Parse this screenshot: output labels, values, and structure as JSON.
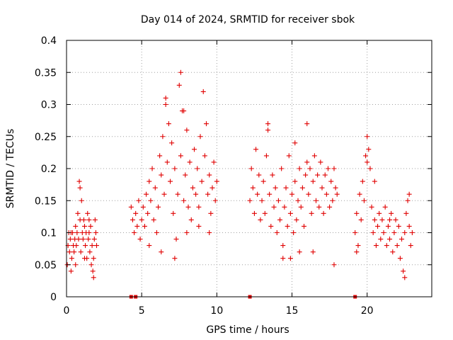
{
  "chart_data": {
    "type": "scatter",
    "title": "Day 014 of 2024, SRMTID for receiver sbok",
    "xlabel": "GPS time / hours",
    "ylabel": "SRMTID / TECUs",
    "xlim": [
      0,
      24.3
    ],
    "ylim": [
      0,
      0.4
    ],
    "x_ticks": [
      0,
      5,
      10,
      15,
      20
    ],
    "x_tick_labels": [
      "0",
      "5",
      "10",
      "15",
      "20"
    ],
    "y_ticks": [
      0,
      0.05,
      0.1,
      0.15,
      0.2,
      0.25,
      0.3,
      0.35,
      0.4
    ],
    "y_tick_labels": [
      "0",
      "0.05",
      "0.1",
      "0.15",
      "0.2",
      "0.25",
      "0.3",
      "0.35",
      "0.4"
    ],
    "grid": true,
    "marker": "+",
    "color": "#e00000",
    "series": [
      {
        "name": "SRMTID",
        "points": [
          [
            0.05,
            0.05
          ],
          [
            0.1,
            0.08
          ],
          [
            0.15,
            0.1
          ],
          [
            0.2,
            0.07
          ],
          [
            0.25,
            0.09
          ],
          [
            0.3,
            0.04
          ],
          [
            0.35,
            0.06
          ],
          [
            0.4,
            0.1
          ],
          [
            0.45,
            0.08
          ],
          [
            0.5,
            0.07
          ],
          [
            0.55,
            0.09
          ],
          [
            0.6,
            0.11
          ],
          [
            0.65,
            0.08
          ],
          [
            0.7,
            0.1
          ],
          [
            0.75,
            0.13
          ],
          [
            0.8,
            0.09
          ],
          [
            0.85,
            0.18
          ],
          [
            0.9,
            0.12
          ],
          [
            0.95,
            0.07
          ],
          [
            1.0,
            0.15
          ],
          [
            1.05,
            0.1
          ],
          [
            1.1,
            0.09
          ],
          [
            1.15,
            0.12
          ],
          [
            1.2,
            0.11
          ],
          [
            1.25,
            0.08
          ],
          [
            1.3,
            0.1
          ],
          [
            1.35,
            0.06
          ],
          [
            1.4,
            0.13
          ],
          [
            1.45,
            0.09
          ],
          [
            1.5,
            0.1
          ],
          [
            1.55,
            0.07
          ],
          [
            1.6,
            0.11
          ],
          [
            1.65,
            0.05
          ],
          [
            1.7,
            0.08
          ],
          [
            1.75,
            0.04
          ],
          [
            1.8,
            0.06
          ],
          [
            1.85,
            0.09
          ],
          [
            1.9,
            0.12
          ],
          [
            1.95,
            0.1
          ],
          [
            2.0,
            0.08
          ],
          [
            0.3,
            0.1
          ],
          [
            0.6,
            0.05
          ],
          [
            0.9,
            0.17
          ],
          [
            1.2,
            0.06
          ],
          [
            1.5,
            0.12
          ],
          [
            1.8,
            0.03
          ],
          [
            4.3,
            0.14
          ],
          [
            4.4,
            0.12
          ],
          [
            4.5,
            0.1
          ],
          [
            4.6,
            0.13
          ],
          [
            4.7,
            0.11
          ],
          [
            4.8,
            0.15
          ],
          [
            4.9,
            0.09
          ],
          [
            5.0,
            0.12
          ],
          [
            5.1,
            0.14
          ],
          [
            5.2,
            0.11
          ],
          [
            5.3,
            0.16
          ],
          [
            5.4,
            0.13
          ],
          [
            5.5,
            0.18
          ],
          [
            5.6,
            0.15
          ],
          [
            5.7,
            0.2
          ],
          [
            5.8,
            0.12
          ],
          [
            5.9,
            0.17
          ],
          [
            6.0,
            0.1
          ],
          [
            6.1,
            0.14
          ],
          [
            6.2,
            0.22
          ],
          [
            6.3,
            0.19
          ],
          [
            6.4,
            0.25
          ],
          [
            6.5,
            0.16
          ],
          [
            6.6,
            0.3
          ],
          [
            6.7,
            0.21
          ],
          [
            6.8,
            0.27
          ],
          [
            6.9,
            0.18
          ],
          [
            7.0,
            0.24
          ],
          [
            7.1,
            0.13
          ],
          [
            7.2,
            0.2
          ],
          [
            7.3,
            0.09
          ],
          [
            7.4,
            0.16
          ],
          [
            7.5,
            0.33
          ],
          [
            7.6,
            0.22
          ],
          [
            7.7,
            0.29
          ],
          [
            7.8,
            0.15
          ],
          [
            7.9,
            0.19
          ],
          [
            8.0,
            0.26
          ],
          [
            8.1,
            0.14
          ],
          [
            8.2,
            0.21
          ],
          [
            8.3,
            0.12
          ],
          [
            8.4,
            0.17
          ],
          [
            8.5,
            0.23
          ],
          [
            8.6,
            0.16
          ],
          [
            8.7,
            0.2
          ],
          [
            8.8,
            0.14
          ],
          [
            8.9,
            0.25
          ],
          [
            9.0,
            0.18
          ],
          [
            9.1,
            0.32
          ],
          [
            9.2,
            0.22
          ],
          [
            9.3,
            0.27
          ],
          [
            9.4,
            0.16
          ],
          [
            9.5,
            0.19
          ],
          [
            9.6,
            0.13
          ],
          [
            9.7,
            0.17
          ],
          [
            9.8,
            0.21
          ],
          [
            9.9,
            0.15
          ],
          [
            10.0,
            0.18
          ],
          [
            5.5,
            0.08
          ],
          [
            6.3,
            0.07
          ],
          [
            7.2,
            0.06
          ],
          [
            7.6,
            0.35
          ],
          [
            8.0,
            0.1
          ],
          [
            8.8,
            0.11
          ],
          [
            9.5,
            0.1
          ],
          [
            6.6,
            0.31
          ],
          [
            7.8,
            0.29
          ],
          [
            12.2,
            0.15
          ],
          [
            12.3,
            0.2
          ],
          [
            12.4,
            0.17
          ],
          [
            12.5,
            0.13
          ],
          [
            12.6,
            0.23
          ],
          [
            12.7,
            0.16
          ],
          [
            12.8,
            0.19
          ],
          [
            12.9,
            0.12
          ],
          [
            13.0,
            0.15
          ],
          [
            13.1,
            0.18
          ],
          [
            13.2,
            0.13
          ],
          [
            13.3,
            0.22
          ],
          [
            13.4,
            0.27
          ],
          [
            13.5,
            0.16
          ],
          [
            13.6,
            0.11
          ],
          [
            13.7,
            0.19
          ],
          [
            13.8,
            0.14
          ],
          [
            13.9,
            0.17
          ],
          [
            14.0,
            0.1
          ],
          [
            14.1,
            0.15
          ],
          [
            14.2,
            0.12
          ],
          [
            14.3,
            0.2
          ],
          [
            14.4,
            0.08
          ],
          [
            14.5,
            0.14
          ],
          [
            14.6,
            0.17
          ],
          [
            14.7,
            0.11
          ],
          [
            14.8,
            0.22
          ],
          [
            14.9,
            0.13
          ],
          [
            15.0,
            0.16
          ],
          [
            15.1,
            0.1
          ],
          [
            15.2,
            0.18
          ],
          [
            15.3,
            0.12
          ],
          [
            15.4,
            0.15
          ],
          [
            15.5,
            0.2
          ],
          [
            15.6,
            0.14
          ],
          [
            15.7,
            0.17
          ],
          [
            15.8,
            0.11
          ],
          [
            15.9,
            0.19
          ],
          [
            16.0,
            0.21
          ],
          [
            16.1,
            0.16
          ],
          [
            16.2,
            0.2
          ],
          [
            16.3,
            0.13
          ],
          [
            16.4,
            0.18
          ],
          [
            16.5,
            0.22
          ],
          [
            16.6,
            0.15
          ],
          [
            16.7,
            0.19
          ],
          [
            16.8,
            0.14
          ],
          [
            16.9,
            0.21
          ],
          [
            17.0,
            0.17
          ],
          [
            17.1,
            0.13
          ],
          [
            17.2,
            0.19
          ],
          [
            17.3,
            0.16
          ],
          [
            17.4,
            0.2
          ],
          [
            17.5,
            0.14
          ],
          [
            17.6,
            0.18
          ],
          [
            17.7,
            0.15
          ],
          [
            17.8,
            0.2
          ],
          [
            17.9,
            0.17
          ],
          [
            18.0,
            0.16
          ],
          [
            13.4,
            0.26
          ],
          [
            14.4,
            0.06
          ],
          [
            15.2,
            0.24
          ],
          [
            15.5,
            0.07
          ],
          [
            16.0,
            0.27
          ],
          [
            16.4,
            0.07
          ],
          [
            17.8,
            0.05
          ],
          [
            14.9,
            0.06
          ],
          [
            19.2,
            0.1
          ],
          [
            19.3,
            0.13
          ],
          [
            19.4,
            0.08
          ],
          [
            19.5,
            0.16
          ],
          [
            19.6,
            0.12
          ],
          [
            19.7,
            0.18
          ],
          [
            19.8,
            0.15
          ],
          [
            19.9,
            0.22
          ],
          [
            20.0,
            0.25
          ],
          [
            20.1,
            0.23
          ],
          [
            20.2,
            0.2
          ],
          [
            20.3,
            0.14
          ],
          [
            20.4,
            0.1
          ],
          [
            20.5,
            0.12
          ],
          [
            20.6,
            0.08
          ],
          [
            20.7,
            0.11
          ],
          [
            20.8,
            0.13
          ],
          [
            20.9,
            0.09
          ],
          [
            21.0,
            0.12
          ],
          [
            21.1,
            0.1
          ],
          [
            21.2,
            0.14
          ],
          [
            21.3,
            0.08
          ],
          [
            21.4,
            0.11
          ],
          [
            21.5,
            0.09
          ],
          [
            21.6,
            0.13
          ],
          [
            21.7,
            0.07
          ],
          [
            21.8,
            0.1
          ],
          [
            21.9,
            0.12
          ],
          [
            22.0,
            0.08
          ],
          [
            22.1,
            0.11
          ],
          [
            22.2,
            0.06
          ],
          [
            22.3,
            0.09
          ],
          [
            22.4,
            0.04
          ],
          [
            22.5,
            0.1
          ],
          [
            22.6,
            0.13
          ],
          [
            22.7,
            0.15
          ],
          [
            22.8,
            0.11
          ],
          [
            22.9,
            0.08
          ],
          [
            23.0,
            0.1
          ],
          [
            19.3,
            0.07
          ],
          [
            20.0,
            0.21
          ],
          [
            20.5,
            0.18
          ],
          [
            21.5,
            0.12
          ],
          [
            22.5,
            0.03
          ],
          [
            22.8,
            0.16
          ]
        ]
      }
    ],
    "zero_markers_x": [
      4.3,
      4.6,
      12.2,
      19.2
    ]
  }
}
